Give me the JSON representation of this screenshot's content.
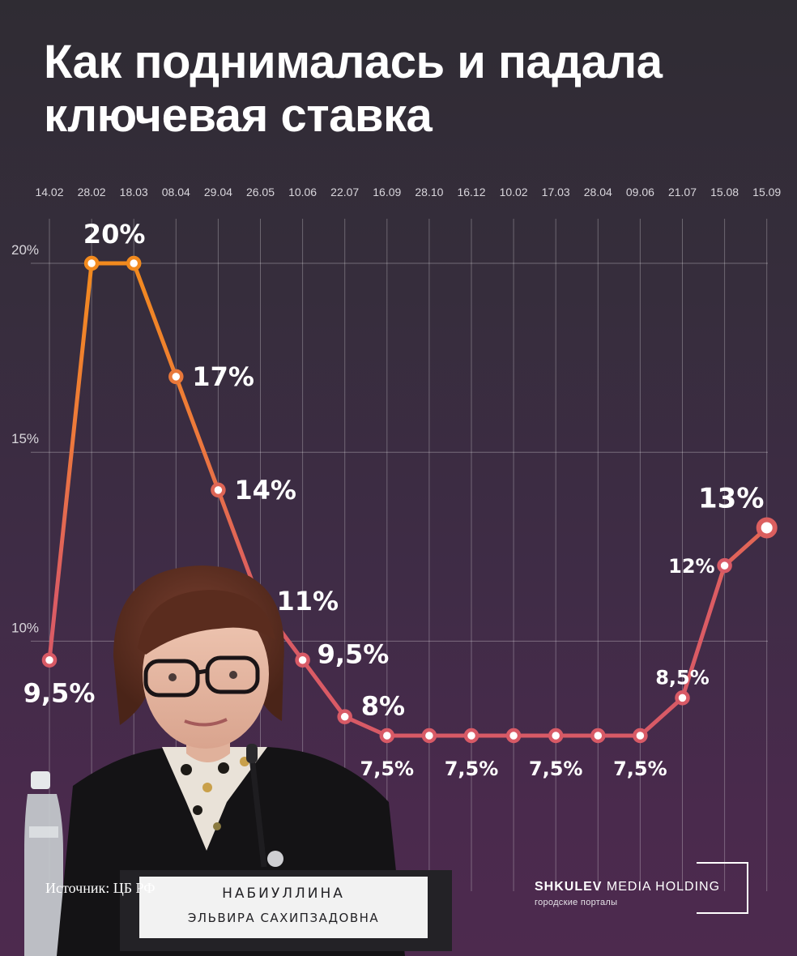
{
  "header": {
    "title_line1": "Как поднималась и падала",
    "title_line2": "ключевая ставка"
  },
  "chart_data": {
    "type": "line",
    "title": "Как поднималась и падала ключевая ставка",
    "xlabel": "",
    "ylabel": "",
    "categories": [
      "14.02",
      "28.02",
      "18.03",
      "08.04",
      "29.04",
      "26.05",
      "10.06",
      "22.07",
      "16.09",
      "28.10",
      "16.12",
      "10.02",
      "17.03",
      "28.04",
      "09.06",
      "21.07",
      "15.08",
      "15.09"
    ],
    "values": [
      9.5,
      20,
      20,
      17,
      14,
      11,
      9.5,
      8,
      7.5,
      7.5,
      7.5,
      7.5,
      7.5,
      7.5,
      7.5,
      8.5,
      12,
      13
    ],
    "data_labels": [
      "9,5%",
      "20%",
      "",
      "17%",
      "14%",
      "11%",
      "9,5%",
      "8%",
      "7,5%",
      "",
      "7,5%",
      "",
      "7,5%",
      "",
      "7,5%",
      "8,5%",
      "12%",
      "13%"
    ],
    "yticks": [
      "10%",
      "15%",
      "20%"
    ],
    "ylim": [
      7.5,
      20
    ],
    "grid": true,
    "legend": "none",
    "colors": {
      "start": "#f28a1e",
      "end": "#d85a66",
      "grid": "#ffffff"
    }
  },
  "footer": {
    "source": "Источник: ЦБ РФ",
    "logo_bold": "SHKULEV",
    "logo_rest": " MEDIA HOLDING",
    "logo_sub": "городские порталы"
  },
  "portrait": {
    "nameplate_line1": "НАБИУЛЛИНА",
    "nameplate_line2": "ЭЛЬВИРА САХИПЗАДОВНА"
  }
}
